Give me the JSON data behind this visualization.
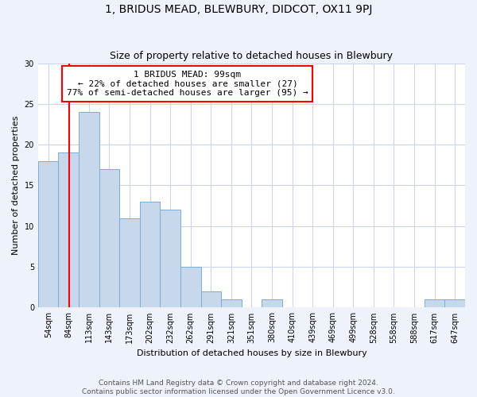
{
  "title": "1, BRIDUS MEAD, BLEWBURY, DIDCOT, OX11 9PJ",
  "subtitle": "Size of property relative to detached houses in Blewbury",
  "xlabel": "Distribution of detached houses by size in Blewbury",
  "ylabel": "Number of detached properties",
  "categories": [
    "54sqm",
    "84sqm",
    "113sqm",
    "143sqm",
    "173sqm",
    "202sqm",
    "232sqm",
    "262sqm",
    "291sqm",
    "321sqm",
    "351sqm",
    "380sqm",
    "410sqm",
    "439sqm",
    "469sqm",
    "499sqm",
    "528sqm",
    "558sqm",
    "588sqm",
    "617sqm",
    "647sqm"
  ],
  "values": [
    18,
    19,
    24,
    17,
    11,
    13,
    12,
    5,
    2,
    1,
    0,
    1,
    0,
    0,
    0,
    0,
    0,
    0,
    0,
    1,
    1
  ],
  "bar_color": "#c8d8ec",
  "bar_edge_color": "#7aaed0",
  "ylim": [
    0,
    30
  ],
  "yticks": [
    0,
    5,
    10,
    15,
    20,
    25,
    30
  ],
  "bin_edges_sqm": [
    54,
    84,
    113,
    143,
    173,
    202,
    232,
    262,
    291,
    321,
    351,
    380,
    410,
    439,
    469,
    499,
    528,
    558,
    588,
    617,
    647
  ],
  "prop_sqm": 99,
  "annotation_text": "1 BRIDUS MEAD: 99sqm\n← 22% of detached houses are smaller (27)\n77% of semi-detached houses are larger (95) →",
  "footer_line1": "Contains HM Land Registry data © Crown copyright and database right 2024.",
  "footer_line2": "Contains public sector information licensed under the Open Government Licence v3.0.",
  "background_color": "#eef2fb",
  "plot_bg_color": "#ffffff",
  "grid_color": "#ccd6e8",
  "title_fontsize": 10,
  "subtitle_fontsize": 9,
  "axis_label_fontsize": 8,
  "tick_fontsize": 7,
  "annotation_fontsize": 8,
  "footer_fontsize": 6.5
}
